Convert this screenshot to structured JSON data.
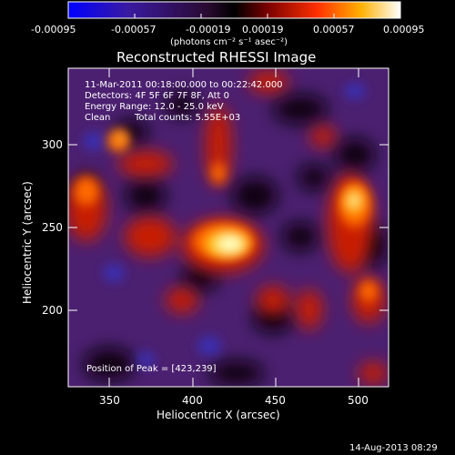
{
  "colorbar": {
    "ticks": [
      "-0.00095",
      "-0.00057",
      "-0.00019",
      "0.00019",
      "0.00057",
      "0.00095"
    ],
    "unit_label": "(photons cm⁻² s⁻¹ asec⁻²)"
  },
  "title": "Reconstructed RHESSI Image",
  "info": {
    "line1": "11-Mar-2011 00:18:00.000 to 00:22:42.000",
    "line2": "Detectors: 4F 5F 6F 7F 8F, Att 0",
    "line3": "Energy Range: 12.0 - 25.0 keV",
    "line4_a": "Clean",
    "line4_b": "Total counts: 5.55E+03"
  },
  "peak_label": "Position of Peak = [423,239]",
  "x_axis": {
    "label": "Heliocentric X (arcsec)",
    "ticks": [
      "350",
      "400",
      "450",
      "500"
    ]
  },
  "y_axis": {
    "label": "Heliocentric Y (arcsec)",
    "ticks": [
      "200",
      "250",
      "300"
    ]
  },
  "timestamp": "14-Aug-2013 08:29",
  "colors": {
    "background": "#000000",
    "map_base": "#4b2070",
    "flare_core": "#ffffc0"
  }
}
